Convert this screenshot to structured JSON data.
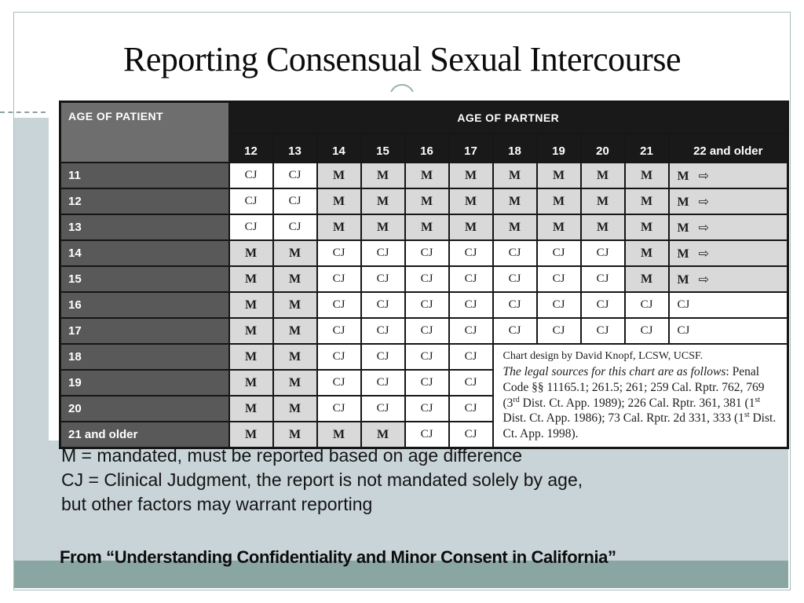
{
  "title": "Reporting Consensual Sexual Intercourse",
  "table": {
    "corner_header": "AGE OF PATIENT",
    "partner_header": "AGE OF PARTNER",
    "columns": [
      "12",
      "13",
      "14",
      "15",
      "16",
      "17",
      "18",
      "19",
      "20",
      "21",
      "22 and older"
    ],
    "arrow_glyph": "⇨",
    "rows": [
      {
        "label": "11",
        "cells": [
          "CJ",
          "CJ",
          "M",
          "M",
          "M",
          "M",
          "M",
          "M",
          "M",
          "M",
          "M→"
        ]
      },
      {
        "label": "12",
        "cells": [
          "CJ",
          "CJ",
          "M",
          "M",
          "M",
          "M",
          "M",
          "M",
          "M",
          "M",
          "M→"
        ]
      },
      {
        "label": "13",
        "cells": [
          "CJ",
          "CJ",
          "M",
          "M",
          "M",
          "M",
          "M",
          "M",
          "M",
          "M",
          "M→"
        ]
      },
      {
        "label": "14",
        "cells": [
          "M",
          "M",
          "CJ",
          "CJ",
          "CJ",
          "CJ",
          "CJ",
          "CJ",
          "CJ",
          "M",
          "M→"
        ]
      },
      {
        "label": "15",
        "cells": [
          "M",
          "M",
          "CJ",
          "CJ",
          "CJ",
          "CJ",
          "CJ",
          "CJ",
          "CJ",
          "M",
          "M→"
        ]
      },
      {
        "label": "16",
        "cells": [
          "M",
          "M",
          "CJ",
          "CJ",
          "CJ",
          "CJ",
          "CJ",
          "CJ",
          "CJ",
          "CJ",
          "CJ"
        ]
      },
      {
        "label": "17",
        "cells": [
          "M",
          "M",
          "CJ",
          "CJ",
          "CJ",
          "CJ",
          "CJ",
          "CJ",
          "CJ",
          "CJ",
          "CJ"
        ]
      },
      {
        "label": "18",
        "cells": [
          "M",
          "M",
          "CJ",
          "CJ",
          "CJ",
          "CJ"
        ],
        "note_anchor": true
      },
      {
        "label": "19",
        "cells": [
          "M",
          "M",
          "CJ",
          "CJ",
          "CJ",
          "CJ"
        ]
      },
      {
        "label": "20",
        "cells": [
          "M",
          "M",
          "CJ",
          "CJ",
          "CJ",
          "CJ"
        ]
      },
      {
        "label": "21 and older",
        "cells": [
          "M",
          "M",
          "M",
          "M",
          "CJ",
          "CJ"
        ]
      }
    ],
    "note_segments": [
      {
        "text": "Chart design by David Knopf, LCSW, UCSF.",
        "style": "firstline"
      },
      {
        "text": "The legal sources for this chart are as follows",
        "style": "italic"
      },
      {
        "text": ": Penal Code §§ 11165.1; 261.5; 261; 259 Cal. Rptr. 762, 769 (3",
        "style": "normal"
      },
      {
        "text": "rd",
        "style": "sup"
      },
      {
        "text": " Dist. Ct. App. 1989); 226 Cal. Rptr. 361, 381 (1",
        "style": "normal"
      },
      {
        "text": "st",
        "style": "sup"
      },
      {
        "text": " Dist. Ct. App. 1986); 73 Cal. Rptr. 2d 331, 333 (1",
        "style": "normal"
      },
      {
        "text": "st",
        "style": "sup"
      },
      {
        "text": " Dist. Ct. App. 1998).",
        "style": "normal"
      }
    ]
  },
  "legend": {
    "line1": "M = mandated, must be reported based on age difference",
    "line2": "CJ = Clinical Judgment, the report is not mandated solely by age,",
    "line3": "but other factors may warrant reporting"
  },
  "source": "From “Understanding Confidentiality and Minor Consent in California”",
  "colors": {
    "frame_border": "#a7bcbc",
    "panel": "#c8d4d8",
    "footer_band": "#8aa6a3",
    "header_black": "#191919",
    "corner_gray": "#6e6e6e",
    "row_label_gray": "#595959",
    "m_cell_gray": "#d9d9d9"
  }
}
